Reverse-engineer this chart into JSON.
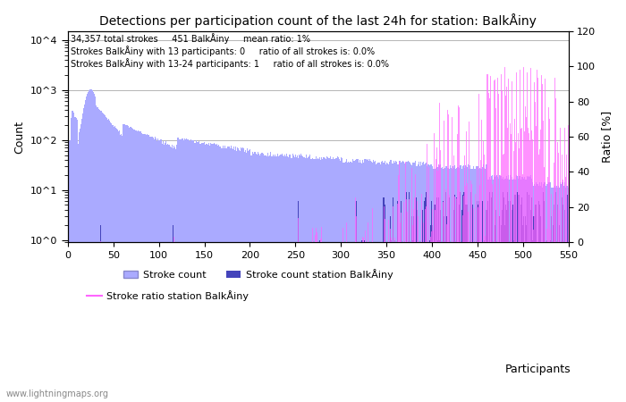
{
  "title": "Detections per participation count of the last 24h for station: BalkÅiny",
  "annotation_line1": "34,357 total strokes     451 BalkÅiny     mean ratio: 1%",
  "annotation_line2": "Strokes BalkÅiny with 13 participants: 0     ratio of all strokes is: 0.0%",
  "annotation_line3": "Strokes BalkÅiny with 13-24 participants: 1     ratio of all strokes is: 0.0%",
  "xlabel": "Participants",
  "ylabel_left": "Count",
  "ylabel_right": "Ratio [%]",
  "xlim": [
    0,
    550
  ],
  "ylim_left": [
    0.9,
    15000
  ],
  "ylim_right": [
    0,
    120
  ],
  "bar_color_all": "#aaaaff",
  "bar_color_station": "#4444bb",
  "line_color_ratio": "#ff66ff",
  "watermark": "www.lightningmaps.org",
  "background_color": "#ffffff",
  "grid_color": "#aaaaaa"
}
